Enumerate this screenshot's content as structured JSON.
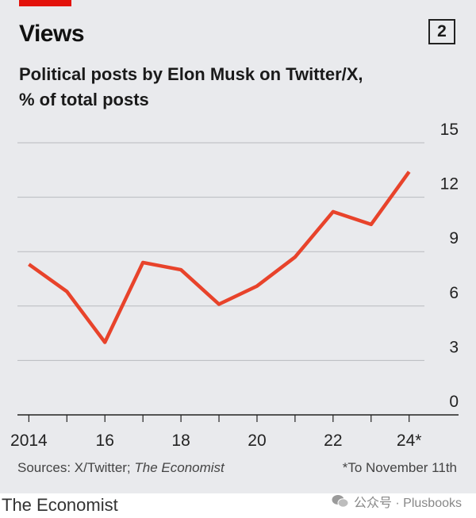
{
  "header": {
    "title": "Views",
    "chart_number": "2",
    "subtitle_line1": "Political posts by Elon Musk on Twitter/X,",
    "subtitle_line2": "% of total posts"
  },
  "footer": {
    "sources_prefix": "Sources: X/Twitter; ",
    "sources_italic": "The Economist",
    "note": "*To November 11th"
  },
  "brand": "The Economist",
  "watermark": "公众号 · Plusbooks",
  "colors": {
    "accent": "#e3120b",
    "line": "#e8432b",
    "background": "#e9eaed"
  },
  "chart_data": {
    "type": "line",
    "title": "Political posts by Elon Musk on Twitter/X, % of total posts",
    "xlabel": "",
    "ylabel": "",
    "x": [
      2014,
      2015,
      2016,
      2017,
      2018,
      2019,
      2020,
      2021,
      2022,
      2023,
      2024
    ],
    "series": [
      {
        "values": [
          8.3,
          6.8,
          4.0,
          8.4,
          8.0,
          6.1,
          7.1,
          8.7,
          11.2,
          10.5,
          13.4
        ]
      }
    ],
    "xticks": [
      2014,
      2016,
      2018,
      2020,
      2022,
      2024
    ],
    "xtick_labels": [
      "2014",
      "16",
      "18",
      "20",
      "22",
      "24*"
    ],
    "yticks": [
      0,
      3,
      6,
      9,
      12,
      15
    ],
    "ytick_labels": [
      "0",
      "3",
      "6",
      "9",
      "12",
      "15"
    ],
    "xlim": [
      2013.7,
      2025.3
    ],
    "ylim": [
      0,
      15
    ],
    "grid": true,
    "legend": "none"
  }
}
